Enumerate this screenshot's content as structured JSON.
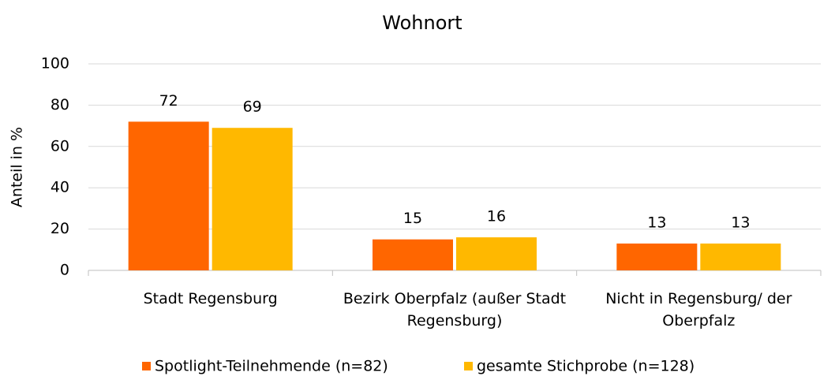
{
  "chart_data": {
    "type": "bar",
    "title": "Wohnort",
    "y_label": "Anteil in %",
    "categories": [
      "Stadt Regensburg",
      "Bezirk Oberpfalz (außer Stadt Regensburg)",
      "Nicht in Regensburg/ der Oberpfalz"
    ],
    "series": [
      {
        "name": "Spotlight-Teilnehmende (n=82)",
        "color": "#ff6600",
        "values": [
          72,
          15,
          13
        ]
      },
      {
        "name": "gesamte Stichprobe (n=128)",
        "color": "#ffb800",
        "values": [
          69,
          16,
          13
        ]
      }
    ],
    "ylim": [
      0,
      100
    ],
    "yticks": [
      0,
      20,
      40,
      60,
      80,
      100
    ],
    "grid": true,
    "legend": "bottom"
  }
}
